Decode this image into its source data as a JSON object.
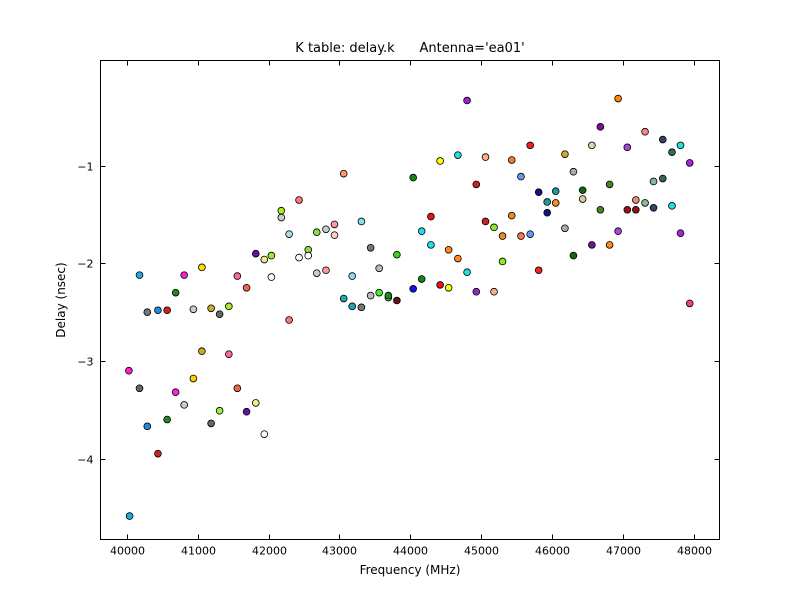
{
  "chart_data": {
    "type": "scatter",
    "title": "K table: delay.k      Antenna='ea01'",
    "xlabel": "Frequency (MHz)",
    "ylabel": "Delay (nsec)",
    "xlim": [
      39630,
      48360
    ],
    "ylim": [
      -4.83,
      0.08
    ],
    "xticks": [
      40000,
      41000,
      42000,
      43000,
      44000,
      45000,
      46000,
      47000,
      48000
    ],
    "xtick_labels": [
      "40000",
      "41000",
      "42000",
      "43000",
      "44000",
      "45000",
      "46000",
      "47000",
      "48000"
    ],
    "yticks": [
      -1,
      -2,
      -3,
      -4
    ],
    "ytick_labels": [
      "−1",
      "−2",
      "−3",
      "−4"
    ],
    "grid": false,
    "legend": false,
    "points": [
      {
        "x": 40030,
        "y": -3.1,
        "color": "#ff22cc"
      },
      {
        "x": 40040,
        "y": -4.59,
        "color": "#22aadd"
      },
      {
        "x": 40180,
        "y": -2.12,
        "color": "#22aadd"
      },
      {
        "x": 40180,
        "y": -3.28,
        "color": "#666666"
      },
      {
        "x": 40290,
        "y": -2.5,
        "color": "#777777"
      },
      {
        "x": 40290,
        "y": -3.67,
        "color": "#2288dd"
      },
      {
        "x": 40440,
        "y": -2.48,
        "color": "#2288dd"
      },
      {
        "x": 40440,
        "y": -3.95,
        "color": "#cc2222"
      },
      {
        "x": 40570,
        "y": -2.48,
        "color": "#cc2222"
      },
      {
        "x": 40570,
        "y": -3.6,
        "color": "#228822"
      },
      {
        "x": 40690,
        "y": -2.3,
        "color": "#228822"
      },
      {
        "x": 40690,
        "y": -3.32,
        "color": "#ff22dd"
      },
      {
        "x": 40810,
        "y": -2.12,
        "color": "#ff22cc"
      },
      {
        "x": 40810,
        "y": -3.45,
        "color": "#cccccc"
      },
      {
        "x": 40940,
        "y": -2.47,
        "color": "#cccccc"
      },
      {
        "x": 40940,
        "y": -3.18,
        "color": "#ffcc00"
      },
      {
        "x": 41060,
        "y": -2.04,
        "color": "#ffdd00"
      },
      {
        "x": 41060,
        "y": -2.9,
        "color": "#ccaa22"
      },
      {
        "x": 41190,
        "y": -2.46,
        "color": "#ccaa22"
      },
      {
        "x": 41190,
        "y": -3.64,
        "color": "#666666"
      },
      {
        "x": 41310,
        "y": -2.52,
        "color": "#666666"
      },
      {
        "x": 41310,
        "y": -3.51,
        "color": "#99ee44"
      },
      {
        "x": 41440,
        "y": -2.44,
        "color": "#aaee22"
      },
      {
        "x": 41440,
        "y": -2.93,
        "color": "#ff66aa"
      },
      {
        "x": 41560,
        "y": -2.13,
        "color": "#ff6699"
      },
      {
        "x": 41560,
        "y": -3.28,
        "color": "#ee6644"
      },
      {
        "x": 41690,
        "y": -2.25,
        "color": "#ee6644"
      },
      {
        "x": 41690,
        "y": -3.52,
        "color": "#6611aa"
      },
      {
        "x": 41820,
        "y": -1.9,
        "color": "#661199"
      },
      {
        "x": 41820,
        "y": -3.43,
        "color": "#eeee88"
      },
      {
        "x": 41940,
        "y": -1.96,
        "color": "#eeee88"
      },
      {
        "x": 41940,
        "y": -3.75,
        "color": "#ffffff"
      },
      {
        "x": 42040,
        "y": -2.14,
        "color": "#ffffff"
      },
      {
        "x": 42040,
        "y": -1.92,
        "color": "#99ee22"
      },
      {
        "x": 42180,
        "y": -1.46,
        "color": "#aaee22"
      },
      {
        "x": 42180,
        "y": -1.53,
        "color": "#cccccc"
      },
      {
        "x": 42290,
        "y": -1.7,
        "color": "#aaddee"
      },
      {
        "x": 42290,
        "y": -2.58,
        "color": "#ff7777"
      },
      {
        "x": 42430,
        "y": -1.35,
        "color": "#ff7777"
      },
      {
        "x": 42430,
        "y": -1.94,
        "color": "#ffffff"
      },
      {
        "x": 42560,
        "y": -1.86,
        "color": "#88dd44"
      },
      {
        "x": 42560,
        "y": -1.92,
        "color": "#ffffff"
      },
      {
        "x": 42680,
        "y": -1.68,
        "color": "#88dd44"
      },
      {
        "x": 42680,
        "y": -2.1,
        "color": "#cccccc"
      },
      {
        "x": 42810,
        "y": -1.65,
        "color": "#cccccc"
      },
      {
        "x": 42810,
        "y": -2.07,
        "color": "#ff9999"
      },
      {
        "x": 42930,
        "y": -1.6,
        "color": "#ff9999"
      },
      {
        "x": 42930,
        "y": -1.71,
        "color": "#ffcccc"
      },
      {
        "x": 43060,
        "y": -1.08,
        "color": "#ff9966"
      },
      {
        "x": 43060,
        "y": -2.36,
        "color": "#22aaaa"
      },
      {
        "x": 43180,
        "y": -2.44,
        "color": "#22aaaa"
      },
      {
        "x": 43180,
        "y": -2.13,
        "color": "#88ddee"
      },
      {
        "x": 43310,
        "y": -1.57,
        "color": "#88ddee"
      },
      {
        "x": 43310,
        "y": -2.45,
        "color": "#777777"
      },
      {
        "x": 43440,
        "y": -1.84,
        "color": "#777777"
      },
      {
        "x": 43440,
        "y": -2.33,
        "color": "#bbbbbb"
      },
      {
        "x": 43560,
        "y": -2.05,
        "color": "#bbbbbb"
      },
      {
        "x": 43560,
        "y": -2.3,
        "color": "#44ee22"
      },
      {
        "x": 43690,
        "y": -2.35,
        "color": "#44ee22"
      },
      {
        "x": 43690,
        "y": -2.33,
        "color": "#228822"
      },
      {
        "x": 43810,
        "y": -1.91,
        "color": "#44cc22"
      },
      {
        "x": 43810,
        "y": -2.38,
        "color": "#661111"
      },
      {
        "x": 44040,
        "y": -1.12,
        "color": "#118811"
      },
      {
        "x": 44040,
        "y": -2.26,
        "color": "#1111dd"
      },
      {
        "x": 44160,
        "y": -2.16,
        "color": "#118811"
      },
      {
        "x": 44160,
        "y": -1.67,
        "color": "#22ddee"
      },
      {
        "x": 44290,
        "y": -1.81,
        "color": "#22ddee"
      },
      {
        "x": 44290,
        "y": -1.52,
        "color": "#ee1111"
      },
      {
        "x": 44420,
        "y": -2.22,
        "color": "#ee1111"
      },
      {
        "x": 44420,
        "y": -0.95,
        "color": "#ffff00"
      },
      {
        "x": 44540,
        "y": -1.86,
        "color": "#ff8822"
      },
      {
        "x": 44540,
        "y": -2.25,
        "color": "#ffff00"
      },
      {
        "x": 44670,
        "y": -0.89,
        "color": "#22dddd"
      },
      {
        "x": 44670,
        "y": -1.95,
        "color": "#ff8822"
      },
      {
        "x": 44800,
        "y": -0.33,
        "color": "#9922cc"
      },
      {
        "x": 44800,
        "y": -2.09,
        "color": "#22dddd"
      },
      {
        "x": 44930,
        "y": -1.19,
        "color": "#cc2222"
      },
      {
        "x": 44930,
        "y": -2.29,
        "color": "#9922cc"
      },
      {
        "x": 45060,
        "y": -0.91,
        "color": "#ffaa88"
      },
      {
        "x": 45060,
        "y": -1.57,
        "color": "#cc2222"
      },
      {
        "x": 45180,
        "y": -1.63,
        "color": "#88ee22"
      },
      {
        "x": 45180,
        "y": -2.29,
        "color": "#ffaa88"
      },
      {
        "x": 45300,
        "y": -1.72,
        "color": "#ee8822"
      },
      {
        "x": 45300,
        "y": -1.98,
        "color": "#88ee22"
      },
      {
        "x": 45430,
        "y": -0.94,
        "color": "#ff7722"
      },
      {
        "x": 45430,
        "y": -1.51,
        "color": "#ee8822"
      },
      {
        "x": 45560,
        "y": -1.11,
        "color": "#6699ee"
      },
      {
        "x": 45560,
        "y": -1.72,
        "color": "#ff7744"
      },
      {
        "x": 45690,
        "y": -0.79,
        "color": "#ee2222"
      },
      {
        "x": 45690,
        "y": -1.7,
        "color": "#6699ee"
      },
      {
        "x": 45810,
        "y": -1.27,
        "color": "#111188"
      },
      {
        "x": 45810,
        "y": -2.07,
        "color": "#ee2222"
      },
      {
        "x": 45930,
        "y": -1.37,
        "color": "#229999"
      },
      {
        "x": 45930,
        "y": -1.48,
        "color": "#111188"
      },
      {
        "x": 46050,
        "y": -1.26,
        "color": "#229999"
      },
      {
        "x": 46050,
        "y": -1.38,
        "color": "#ff8822"
      },
      {
        "x": 46180,
        "y": -0.88,
        "color": "#ccaa22"
      },
      {
        "x": 46180,
        "y": -1.64,
        "color": "#aaaaaa"
      },
      {
        "x": 46300,
        "y": -1.06,
        "color": "#aaaaaa"
      },
      {
        "x": 46300,
        "y": -1.92,
        "color": "#116611"
      },
      {
        "x": 46430,
        "y": -1.25,
        "color": "#116611"
      },
      {
        "x": 46430,
        "y": -1.34,
        "color": "#ddcc99"
      },
      {
        "x": 46560,
        "y": -0.79,
        "color": "#ccddaa"
      },
      {
        "x": 46560,
        "y": -1.81,
        "color": "#771199"
      },
      {
        "x": 46680,
        "y": -0.6,
        "color": "#771199"
      },
      {
        "x": 46680,
        "y": -1.45,
        "color": "#448822"
      },
      {
        "x": 46810,
        "y": -1.19,
        "color": "#448822"
      },
      {
        "x": 46810,
        "y": -1.81,
        "color": "#ff8822"
      },
      {
        "x": 46930,
        "y": -0.31,
        "color": "#ff8800"
      },
      {
        "x": 46930,
        "y": -1.67,
        "color": "#aa44dd"
      },
      {
        "x": 47060,
        "y": -0.81,
        "color": "#aa44dd"
      },
      {
        "x": 47060,
        "y": -1.45,
        "color": "#991111"
      },
      {
        "x": 47180,
        "y": -1.35,
        "color": "#ee8877"
      },
      {
        "x": 47180,
        "y": -1.45,
        "color": "#991111"
      },
      {
        "x": 47310,
        "y": -0.65,
        "color": "#ee8877"
      },
      {
        "x": 47310,
        "y": -1.38,
        "color": "#88bb99"
      },
      {
        "x": 47430,
        "y": -1.16,
        "color": "#88bb99"
      },
      {
        "x": 47430,
        "y": -1.43,
        "color": "#334466"
      },
      {
        "x": 47560,
        "y": -0.73,
        "color": "#334466"
      },
      {
        "x": 47560,
        "y": -1.13,
        "color": "#336655"
      },
      {
        "x": 47690,
        "y": -0.86,
        "color": "#336655"
      },
      {
        "x": 47690,
        "y": -1.41,
        "color": "#22dddd"
      },
      {
        "x": 47810,
        "y": -0.79,
        "color": "#22dddd"
      },
      {
        "x": 47810,
        "y": -1.69,
        "color": "#aa22dd"
      },
      {
        "x": 47940,
        "y": -0.97,
        "color": "#aa22dd"
      },
      {
        "x": 47940,
        "y": -2.41,
        "color": "#ee4477"
      }
    ]
  }
}
